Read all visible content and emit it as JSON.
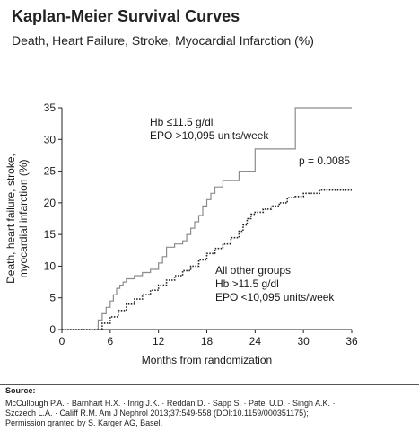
{
  "header": {
    "title": "Kaplan-Meier Survival Curves",
    "subtitle": "Death, Heart Failure, Stroke, Myocardial Infarction (%)"
  },
  "chart_data": {
    "type": "line",
    "xlabel": "Months from randomization",
    "ylabel_lines": [
      "Death, heart failure, stroke,",
      "myocardial infarction (%)"
    ],
    "xlim": [
      0,
      36
    ],
    "ylim": [
      0,
      35
    ],
    "xticks": [
      0,
      6,
      12,
      18,
      24,
      30,
      36
    ],
    "yticks": [
      0,
      5,
      10,
      15,
      20,
      25,
      30,
      35
    ],
    "grid": false,
    "annotation": "p = 0.0085",
    "series": [
      {
        "name": "Hb ≤11.5 g/dl EPO >10,095 units/week",
        "label_lines": [
          "Hb ≤11.5 g/dl",
          "EPO >10,095 units/week"
        ],
        "style": "solid",
        "color": "#8c8c8c",
        "x": [
          0,
          4.0,
          4.5,
          5.0,
          5.5,
          6.0,
          6.4,
          6.8,
          7.2,
          7.6,
          8.0,
          9.0,
          10.0,
          11.0,
          12.0,
          12.5,
          13.0,
          14.0,
          15.0,
          15.5,
          16.0,
          16.5,
          17.0,
          17.5,
          18.0,
          18.5,
          19.0,
          20.0,
          22.0,
          24.0,
          29.0,
          36.0
        ],
        "y": [
          0,
          0,
          1.5,
          2.5,
          3.5,
          4.5,
          5.5,
          6.5,
          7.0,
          7.5,
          8.0,
          8.5,
          9.0,
          9.5,
          10.5,
          11.5,
          13.0,
          13.5,
          14.0,
          15.0,
          16.0,
          17.0,
          18.0,
          19.5,
          20.5,
          21.5,
          22.5,
          23.5,
          25.0,
          28.5,
          35.0,
          35.0
        ]
      },
      {
        "name": "All other groups Hb >11.5 g/dl EPO <10,095 units/week",
        "label_lines": [
          "All other groups",
          "Hb >11.5 g/dl",
          "EPO <10,095 units/week"
        ],
        "style": "dotted",
        "color": "#222222",
        "x": [
          0,
          4.0,
          5.0,
          6.0,
          7.0,
          8.0,
          9.0,
          10.0,
          11.0,
          12.0,
          13.0,
          14.0,
          15.0,
          16.0,
          17.0,
          18.0,
          19.0,
          20.0,
          21.0,
          22.0,
          22.5,
          23.0,
          23.5,
          24.0,
          25.0,
          26.0,
          27.0,
          28.0,
          29.0,
          30.0,
          32.0,
          36.0
        ],
        "y": [
          0,
          0,
          1.0,
          2.0,
          3.0,
          4.0,
          4.8,
          5.5,
          6.2,
          7.0,
          7.8,
          8.5,
          9.3,
          10.0,
          11.0,
          12.0,
          12.8,
          13.5,
          14.5,
          15.5,
          16.5,
          17.5,
          18.2,
          18.5,
          19.0,
          19.5,
          20.0,
          20.8,
          21.0,
          21.5,
          22.0,
          22.0
        ]
      }
    ]
  },
  "source": {
    "label": "Source:",
    "lines": [
      "McCullough P.A. · Barnhart H.X. · Inrig J.K. · Reddan D. · Sapp S. · Patel U.D. · Singh A.K. ·",
      "Szczech L.A. · Califf R.M. Am J Nephrol 2013;37:549-558 (DOI:10.1159/000351175);",
      "Permission granted by S. Karger AG, Basel."
    ]
  }
}
